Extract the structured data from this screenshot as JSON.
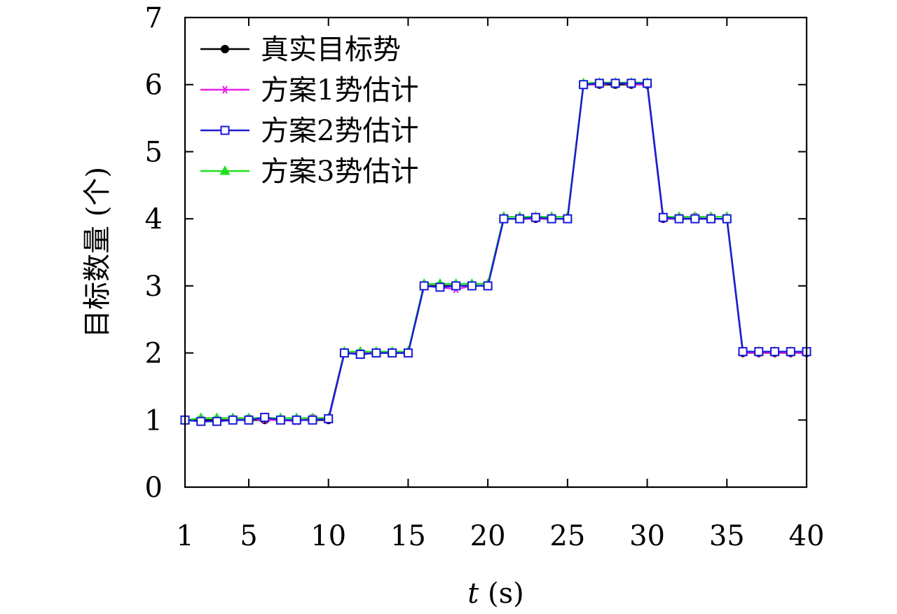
{
  "chart_data": {
    "type": "line",
    "xlabel": "t (s)",
    "ylabel": "目标数量 (个)",
    "xlim": [
      1,
      40
    ],
    "ylim": [
      0,
      7
    ],
    "xticks": [
      1,
      5,
      10,
      15,
      20,
      25,
      30,
      35,
      40
    ],
    "yticks": [
      0,
      1,
      2,
      3,
      4,
      5,
      6,
      7
    ],
    "grid": false,
    "legend_position": "top-left",
    "x": [
      1,
      2,
      3,
      4,
      5,
      6,
      7,
      8,
      9,
      10,
      11,
      12,
      13,
      14,
      15,
      16,
      17,
      18,
      19,
      20,
      21,
      22,
      23,
      24,
      25,
      26,
      27,
      28,
      29,
      30,
      31,
      32,
      33,
      34,
      35,
      36,
      37,
      38,
      39,
      40
    ],
    "series": [
      {
        "name": "真实目标势",
        "color": "#000000",
        "marker": "circle",
        "values": [
          1,
          1,
          1,
          1,
          1,
          1,
          1,
          1,
          1,
          1,
          2,
          2,
          2,
          2,
          2,
          3,
          3,
          3,
          3,
          3,
          4,
          4,
          4,
          4,
          4,
          6,
          6,
          6,
          6,
          6,
          4,
          4,
          4,
          4,
          4,
          2,
          2,
          2,
          2,
          2
        ]
      },
      {
        "name": "方案1势估计",
        "color": "#e81ee8",
        "marker": "asterisk",
        "values": [
          1,
          0.98,
          0.98,
          1,
          1.02,
          1,
          1,
          0.98,
          1.03,
          1,
          2,
          2,
          2,
          2,
          2,
          3,
          2.98,
          2.95,
          3,
          3,
          4,
          4,
          4,
          4,
          4,
          6,
          6,
          6.03,
          6,
          6,
          4,
          4,
          4.03,
          4,
          4,
          2,
          2,
          2,
          2,
          2
        ]
      },
      {
        "name": "方案2势估计",
        "color": "#1a1adc",
        "marker": "square",
        "values": [
          1,
          0.98,
          0.98,
          1,
          1,
          1.04,
          1,
          1,
          1,
          1.02,
          2,
          1.98,
          2,
          2,
          2,
          3,
          2.98,
          3,
          3,
          3,
          4,
          4,
          4.02,
          4,
          4,
          6,
          6.02,
          6.02,
          6.02,
          6.02,
          4.02,
          4,
          4,
          4,
          4,
          2.02,
          2.02,
          2.02,
          2.02,
          2.02
        ]
      },
      {
        "name": "方案3势估计",
        "color": "#1ee01e",
        "marker": "triangle",
        "values": [
          1,
          1.03,
          1.03,
          1.03,
          1.03,
          1.03,
          1.03,
          1.03,
          1.03,
          1.03,
          2.02,
          2.02,
          2.02,
          2.02,
          2.02,
          3.03,
          3.03,
          3.03,
          3.03,
          3.03,
          4.03,
          4.03,
          4.03,
          4.03,
          4.03,
          6.02,
          6.03,
          6.03,
          6.03,
          6.03,
          4.03,
          4.03,
          4.03,
          4.03,
          4.03,
          2.02,
          2.02,
          2.02,
          2.02,
          2.02
        ]
      }
    ]
  }
}
